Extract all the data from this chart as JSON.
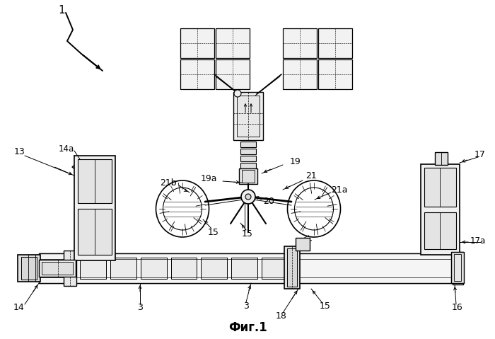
{
  "title": "Фиг.1",
  "background_color": "#ffffff",
  "label_1": "1",
  "label_13": "13",
  "label_14": "14",
  "label_14a": "14a",
  "label_15": "15",
  "label_16": "16",
  "label_17": "17",
  "label_17a": "17a",
  "label_18": "18",
  "label_19": "19",
  "label_19a": "19a",
  "label_20": "20",
  "label_21": "21",
  "label_21a": "21a",
  "label_21b": "21b",
  "label_3a": "3",
  "label_3b": "3",
  "lc": "#000000",
  "fig_width": 7.0,
  "fig_height": 4.79,
  "dpi": 100
}
